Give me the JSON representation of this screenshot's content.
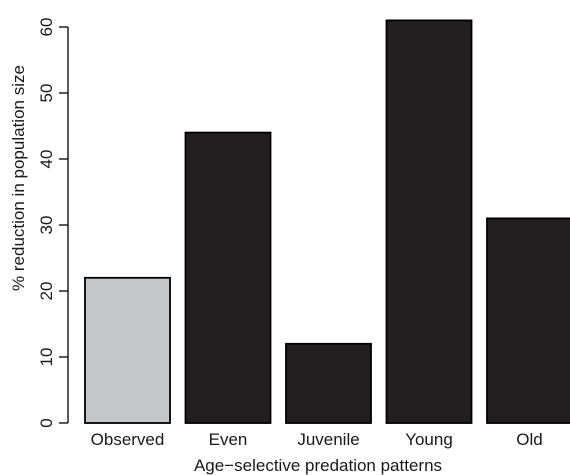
{
  "chart_data": {
    "type": "bar",
    "title": "",
    "xlabel": "Age−selective predation patterns",
    "ylabel": "% reduction in population size",
    "categories": [
      "Observed",
      "Even",
      "Juvenile",
      "Young",
      "Old"
    ],
    "values": [
      22,
      44,
      12,
      61,
      31
    ],
    "ylim": [
      0,
      60
    ],
    "yticks": [
      0,
      10,
      20,
      30,
      40,
      50,
      60
    ],
    "grid": false,
    "colors": {
      "observed": "#c6c7c9",
      "simulated": "#231f20",
      "stroke": "#000000"
    }
  }
}
